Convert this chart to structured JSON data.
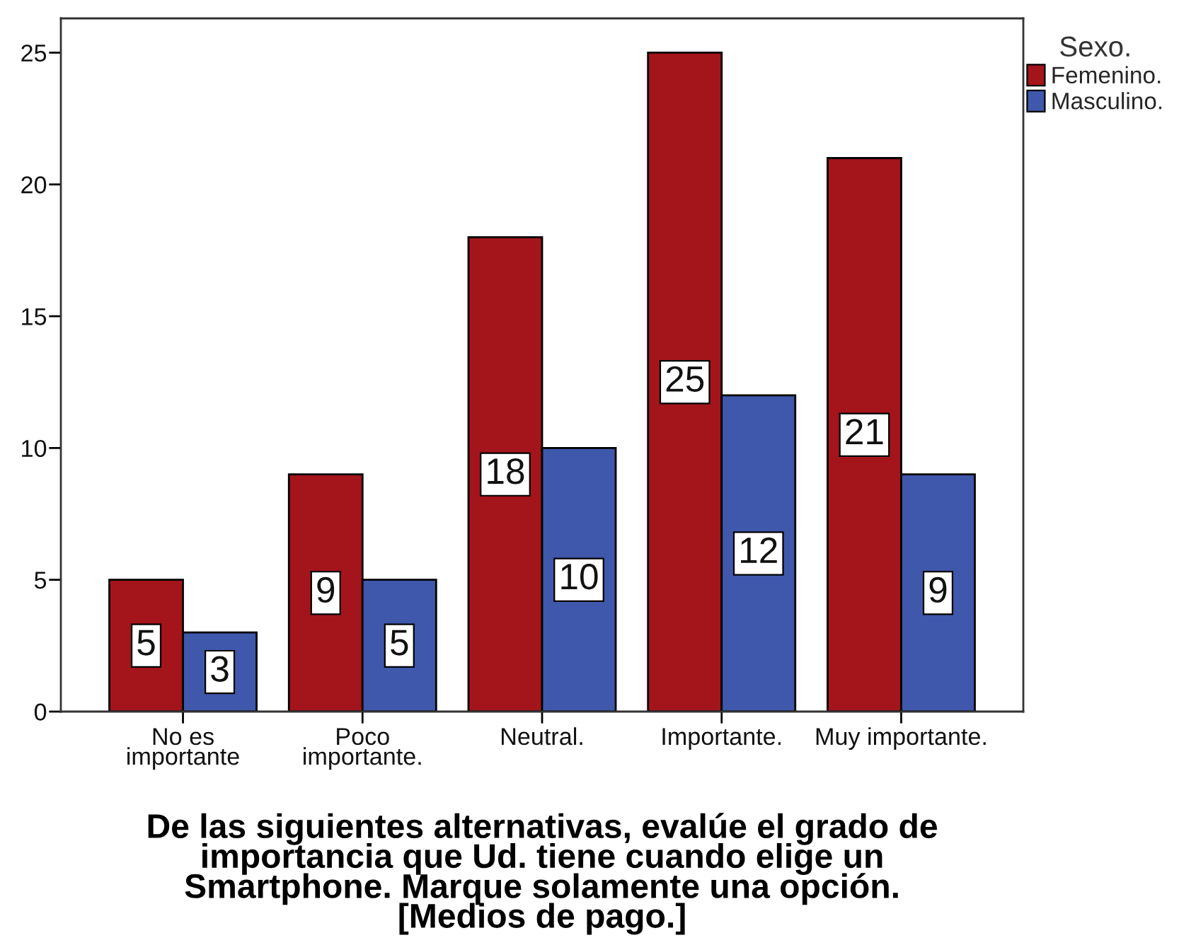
{
  "chart_data": {
    "type": "bar",
    "categories": [
      "No es\nimportante",
      "Poco\nimportante.",
      "Neutral.",
      "Importante.",
      "Muy importante."
    ],
    "xlabel": "De las siguientes alternativas, evalúe el grado de\nimportancia que Ud. tiene cuando elige un\nSmartphone. Marque solamente una opción.\n[Medios de pago.]",
    "legend_title": "Sexo.",
    "series": [
      {
        "name": "Femenino.",
        "color": "#a3151b",
        "values": [
          5,
          9,
          18,
          25,
          21
        ]
      },
      {
        "name": "Masculino.",
        "color": "#3f58ab",
        "values": [
          3,
          5,
          10,
          12,
          9
        ]
      }
    ],
    "ylim": [
      0,
      26.3
    ],
    "yticks": [
      0,
      5,
      10,
      15,
      20,
      25
    ],
    "data_labels": true,
    "legend": "top right"
  }
}
